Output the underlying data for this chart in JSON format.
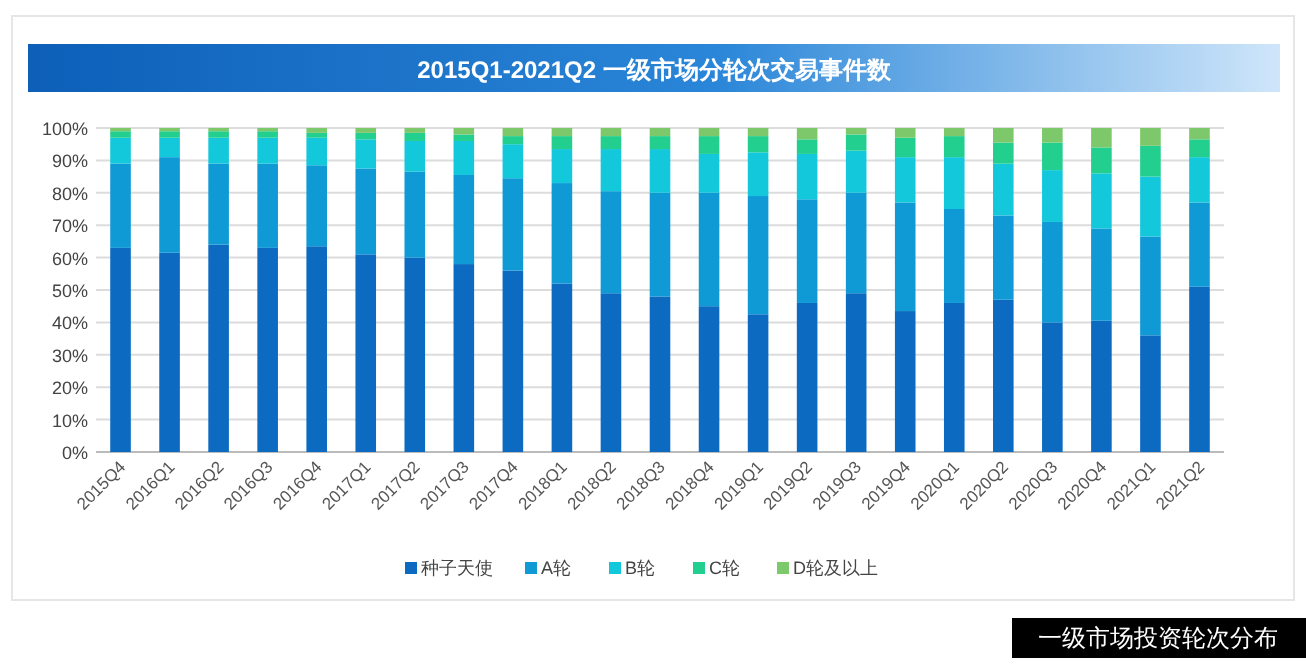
{
  "chart_data": {
    "type": "bar",
    "stacked": true,
    "title": "2015Q1-2021Q2 一级市场分轮次交易事件数",
    "categories": [
      "2015Q4",
      "2016Q1",
      "2016Q2",
      "2016Q3",
      "2016Q4",
      "2017Q1",
      "2017Q2",
      "2017Q3",
      "2017Q4",
      "2018Q1",
      "2018Q2",
      "2018Q3",
      "2018Q4",
      "2019Q1",
      "2019Q2",
      "2019Q3",
      "2019Q4",
      "2020Q1",
      "2020Q2",
      "2020Q3",
      "2020Q4",
      "2021Q1",
      "2021Q2"
    ],
    "series": [
      {
        "name": "种子天使",
        "color": "#0c6bc0",
        "values": [
          63,
          61.5,
          64,
          63,
          63.5,
          61,
          60,
          58,
          56,
          52,
          49,
          48,
          45,
          42.5,
          46,
          49,
          43.5,
          46,
          47,
          40,
          40.5,
          36,
          51
        ]
      },
      {
        "name": "A轮",
        "color": "#0f9ad6",
        "values": [
          26,
          29.5,
          25,
          26,
          25,
          26.5,
          26.5,
          27.5,
          28.5,
          31,
          31.5,
          32,
          35,
          36.5,
          32,
          31,
          33.5,
          29,
          26,
          31,
          28.5,
          30.5,
          26
        ]
      },
      {
        "name": "B轮",
        "color": "#14c8dc",
        "values": [
          8,
          6,
          8,
          8,
          8.5,
          9,
          9.5,
          10.5,
          10.5,
          10.5,
          13,
          13.5,
          12,
          13.5,
          14,
          13,
          14,
          16,
          16,
          16,
          17,
          18.5,
          14
        ]
      },
      {
        "name": "C轮",
        "color": "#22cf8e",
        "values": [
          2,
          2,
          2,
          2,
          1.5,
          2,
          2.5,
          2,
          2.5,
          4,
          4,
          4,
          5.5,
          5,
          4.5,
          5,
          6,
          6.5,
          6.5,
          8.5,
          8,
          9.5,
          5.5
        ]
      },
      {
        "name": "D轮及以上",
        "color": "#7dc86a",
        "values": [
          1,
          1,
          1,
          1,
          1.5,
          1.5,
          1.5,
          2,
          2.5,
          2.5,
          2.5,
          2.5,
          2.5,
          2.5,
          3.5,
          2,
          3,
          2.5,
          4.5,
          4.5,
          6,
          5.5,
          3.5
        ]
      }
    ],
    "ylim": [
      0,
      100
    ],
    "yticks": [
      {
        "value": 0,
        "label": "0%"
      },
      {
        "value": 10,
        "label": "10%"
      },
      {
        "value": 20,
        "label": "20%"
      },
      {
        "value": 30,
        "label": "30%"
      },
      {
        "value": 40,
        "label": "40%"
      },
      {
        "value": 50,
        "label": "50%"
      },
      {
        "value": 60,
        "label": "60%"
      },
      {
        "value": 70,
        "label": "70%"
      },
      {
        "value": 80,
        "label": "80%"
      },
      {
        "value": 90,
        "label": "90%"
      },
      {
        "value": 100,
        "label": "100%"
      }
    ],
    "grid": "y",
    "legend": "bottom",
    "annotations": [
      "一级市场投资轮次分布"
    ]
  }
}
